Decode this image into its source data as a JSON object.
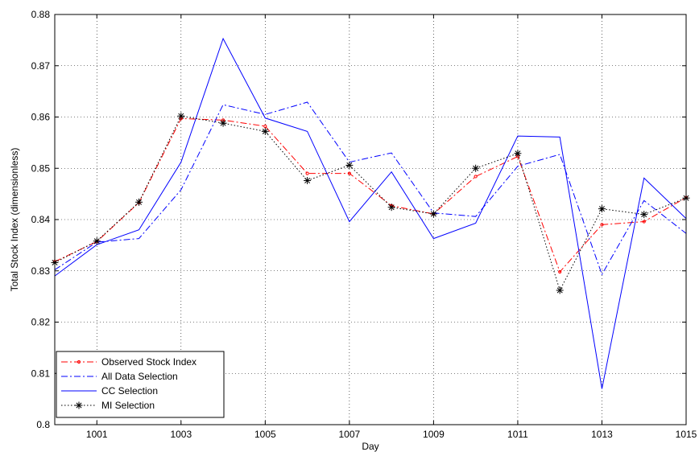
{
  "chart_data": {
    "type": "line",
    "title": "",
    "xlabel": "Day",
    "ylabel": "Total Stock Index (dimensionless)",
    "xlim": [
      1000,
      1015
    ],
    "ylim": [
      0.8,
      0.88
    ],
    "xticks": [
      1001,
      1003,
      1005,
      1007,
      1009,
      1011,
      1013,
      1015
    ],
    "yticks": [
      0.8,
      0.81,
      0.82,
      0.83,
      0.84,
      0.85,
      0.86,
      0.87,
      0.88
    ],
    "grid": true,
    "legend_position": "bottom-left",
    "x": [
      1000,
      1001,
      1002,
      1003,
      1004,
      1005,
      1006,
      1007,
      1008,
      1009,
      1010,
      1011,
      1012,
      1013,
      1014,
      1015
    ],
    "series": [
      {
        "name": "Observed Stock Index",
        "color": "#ff0000",
        "style": "dash-dot",
        "marker": "dot",
        "values": [
          0.8318,
          0.8357,
          0.8433,
          0.8597,
          0.8594,
          0.8582,
          0.849,
          0.849,
          0.8427,
          0.8411,
          0.8484,
          0.8523,
          0.8298,
          0.839,
          0.8396,
          0.8443
        ]
      },
      {
        "name": "All Data Selection",
        "color": "#0000ff",
        "style": "dash-dot",
        "marker": "none",
        "values": [
          0.8302,
          0.8356,
          0.8363,
          0.8458,
          0.8624,
          0.8605,
          0.8629,
          0.8512,
          0.853,
          0.8413,
          0.8406,
          0.8504,
          0.8527,
          0.8293,
          0.8437,
          0.8373
        ]
      },
      {
        "name": "CC Selection",
        "color": "#0000ff",
        "style": "solid",
        "marker": "none",
        "values": [
          0.829,
          0.8351,
          0.838,
          0.8512,
          0.8753,
          0.8598,
          0.8572,
          0.8396,
          0.8493,
          0.8363,
          0.8393,
          0.8563,
          0.8561,
          0.807,
          0.8481,
          0.8402
        ]
      },
      {
        "name": "MI Selection",
        "color": "#000000",
        "style": "dotted",
        "marker": "star",
        "values": [
          0.8316,
          0.8358,
          0.8434,
          0.8602,
          0.8588,
          0.8572,
          0.8476,
          0.8506,
          0.8424,
          0.8411,
          0.85,
          0.8529,
          0.8262,
          0.8421,
          0.841,
          0.8442
        ]
      }
    ]
  }
}
